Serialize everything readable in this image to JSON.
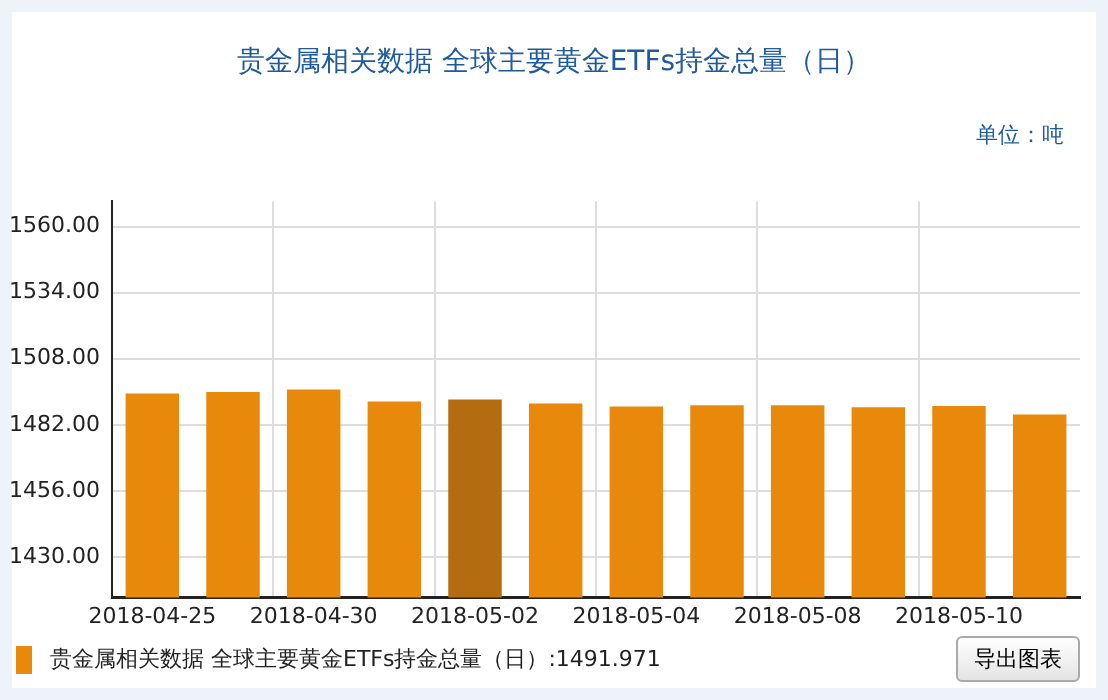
{
  "chart_data": {
    "type": "bar",
    "title": "贵金属相关数据 全球主要黄金ETFs持金总量（日）",
    "ylabel": "单位：吨",
    "categories": [
      "2018-04-25",
      null,
      "2018-04-30",
      null,
      "2018-05-02",
      null,
      "2018-05-04",
      null,
      "2018-05-08",
      null,
      "2018-05-10",
      null
    ],
    "series": [
      {
        "name": "贵金属相关数据 全球主要黄金ETFs持金总量（日）:1491.971",
        "color": "#e8890c",
        "colors": [
          "#e8890c",
          "#e8890c",
          "#e8890c",
          "#e8890c",
          "#b36c10",
          "#e8890c",
          "#e8890c",
          "#e8890c",
          "#e8890c",
          "#e8890c",
          "#e8890c",
          "#e8890c"
        ],
        "values": [
          1494.3,
          1494.9,
          1495.9,
          1491.2,
          1491.971,
          1490.4,
          1489.2,
          1489.7,
          1489.7,
          1488.9,
          1489.4,
          1486.1
        ]
      }
    ],
    "ylim": [
      1414,
      1570
    ],
    "yticks": [
      {
        "value": 1430,
        "label": "1430.00"
      },
      {
        "value": 1456,
        "label": "1456.00"
      },
      {
        "value": 1482,
        "label": "1482.00"
      },
      {
        "value": 1508,
        "label": "1508.00"
      },
      {
        "value": 1534,
        "label": "1534.00"
      },
      {
        "value": 1560,
        "label": "1560.00"
      }
    ],
    "grid": true,
    "legend": "bottom left",
    "annotations": [
      "导出图表"
    ]
  }
}
